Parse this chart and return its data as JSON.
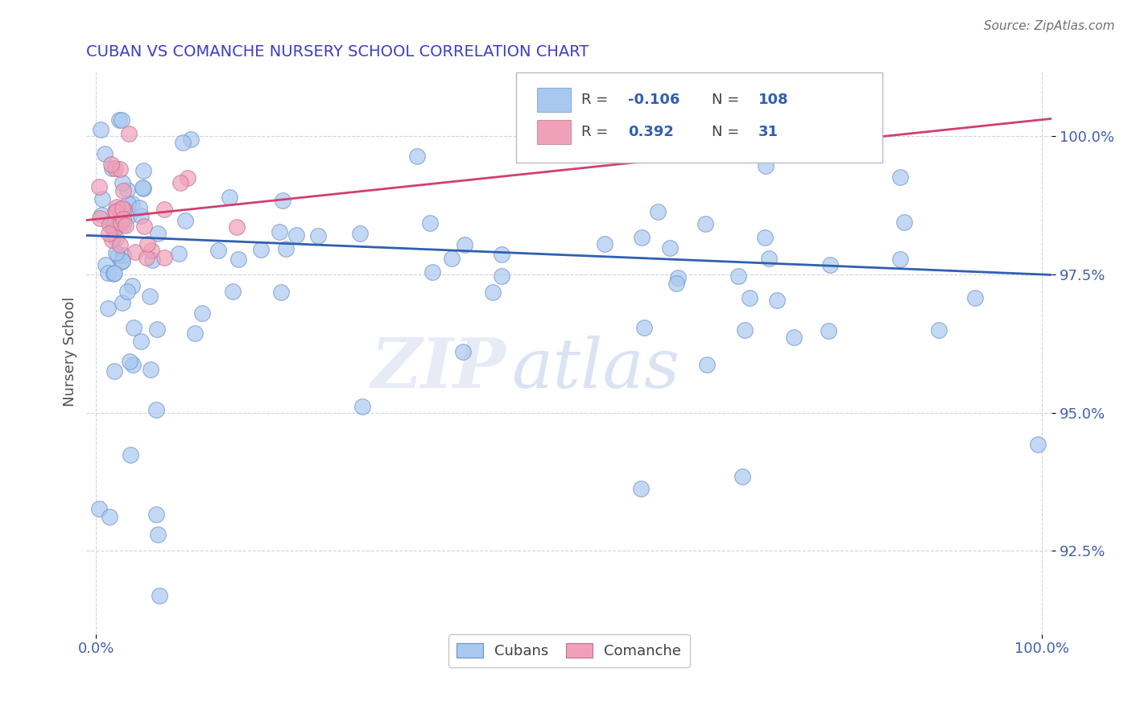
{
  "title": "CUBAN VS COMANCHE NURSERY SCHOOL CORRELATION CHART",
  "title_color": "#3d3dc8",
  "source_text": "Source: ZipAtlas.com",
  "ylabel": "Nursery School",
  "xlim": [
    -1,
    101
  ],
  "ylim": [
    91.0,
    101.2
  ],
  "yticks": [
    92.5,
    95.0,
    97.5,
    100.0
  ],
  "xticks": [
    0,
    100
  ],
  "xticklabels": [
    "0.0%",
    "100.0%"
  ],
  "yticklabels": [
    "92.5%",
    "95.0%",
    "97.5%",
    "100.0%"
  ],
  "cuban_color": "#a8c8f0",
  "cuban_edge_color": "#7090c8",
  "comanche_color": "#f0a0b8",
  "comanche_edge_color": "#c07090",
  "cuban_line_color": "#3060b0",
  "comanche_line_color": "#d04070",
  "legend_R1": "-0.106",
  "legend_N1": "108",
  "legend_R2": "0.392",
  "legend_N2": "31",
  "watermark_zip": "ZIP",
  "watermark_atlas": "atlas",
  "tick_color": "#4060b0",
  "grid_color": "#c8d0e0",
  "ylabel_color": "#505050"
}
